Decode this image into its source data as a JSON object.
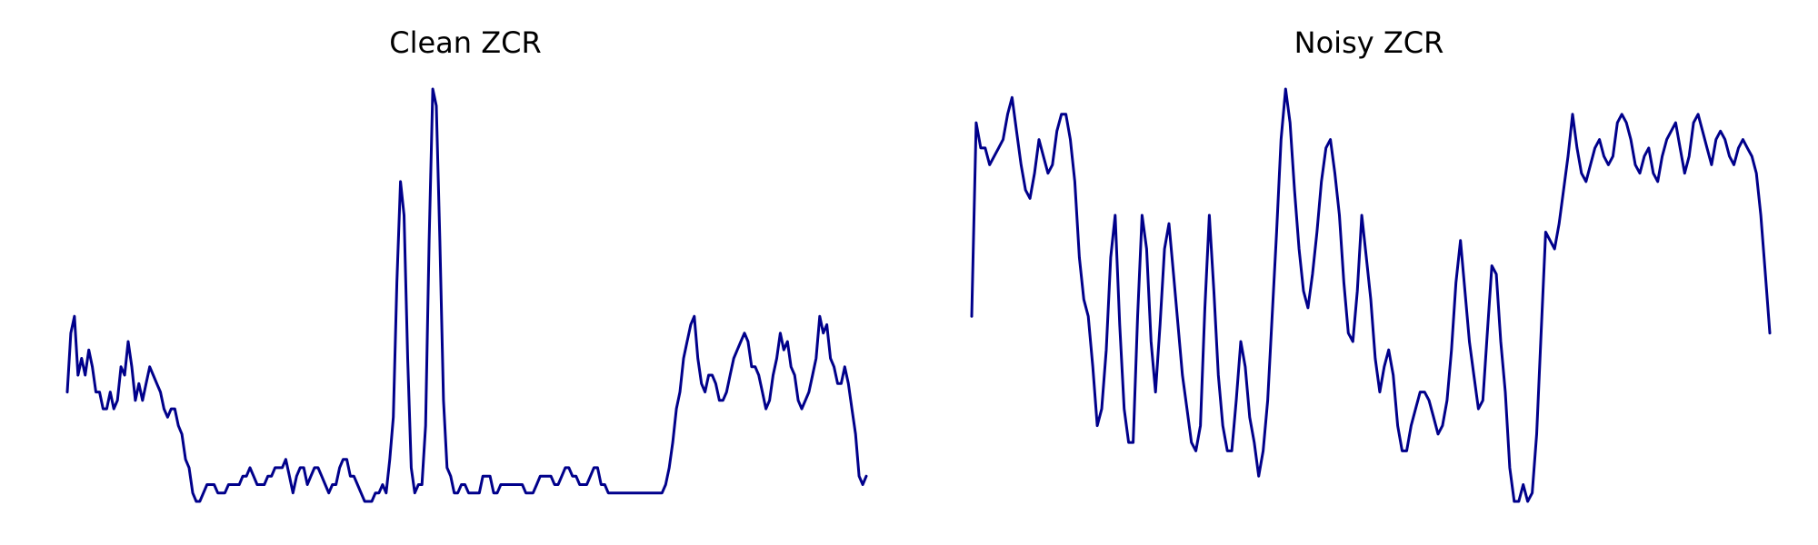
{
  "chart_data": [
    {
      "type": "line",
      "title": "Clean ZCR",
      "xlabel": "",
      "ylabel": "",
      "grid": false,
      "axes_visible": false,
      "color": "#00008B",
      "series": [
        {
          "values": [
            0.31,
            0.38,
            0.4,
            0.33,
            0.35,
            0.33,
            0.36,
            0.34,
            0.31,
            0.31,
            0.29,
            0.29,
            0.31,
            0.29,
            0.3,
            0.34,
            0.33,
            0.37,
            0.34,
            0.3,
            0.32,
            0.3,
            0.32,
            0.34,
            0.33,
            0.32,
            0.31,
            0.29,
            0.28,
            0.29,
            0.29,
            0.27,
            0.26,
            0.23,
            0.22,
            0.19,
            0.18,
            0.18,
            0.19,
            0.2,
            0.2,
            0.2,
            0.19,
            0.19,
            0.19,
            0.2,
            0.2,
            0.2,
            0.2,
            0.21,
            0.21,
            0.22,
            0.21,
            0.2,
            0.2,
            0.2,
            0.21,
            0.21,
            0.22,
            0.22,
            0.22,
            0.23,
            0.21,
            0.19,
            0.21,
            0.22,
            0.22,
            0.2,
            0.21,
            0.22,
            0.22,
            0.21,
            0.2,
            0.19,
            0.2,
            0.2,
            0.22,
            0.23,
            0.23,
            0.21,
            0.21,
            0.2,
            0.19,
            0.18,
            0.18,
            0.18,
            0.19,
            0.19,
            0.2,
            0.19,
            0.23,
            0.28,
            0.44,
            0.56,
            0.52,
            0.35,
            0.22,
            0.19,
            0.2,
            0.2,
            0.27,
            0.49,
            0.67,
            0.65,
            0.49,
            0.3,
            0.22,
            0.21,
            0.19,
            0.19,
            0.2,
            0.2,
            0.19,
            0.19,
            0.19,
            0.19,
            0.21,
            0.21,
            0.21,
            0.19,
            0.19,
            0.2,
            0.2,
            0.2,
            0.2,
            0.2,
            0.2,
            0.2,
            0.19,
            0.19,
            0.19,
            0.2,
            0.21,
            0.21,
            0.21,
            0.21,
            0.2,
            0.2,
            0.21,
            0.22,
            0.22,
            0.21,
            0.21,
            0.2,
            0.2,
            0.2,
            0.21,
            0.22,
            0.22,
            0.2,
            0.2,
            0.19,
            0.19,
            0.19,
            0.19,
            0.19,
            0.19,
            0.19,
            0.19,
            0.19,
            0.19,
            0.19,
            0.19,
            0.19,
            0.19,
            0.19,
            0.19,
            0.2,
            0.22,
            0.25,
            0.29,
            0.31,
            0.35,
            0.37,
            0.39,
            0.4,
            0.35,
            0.32,
            0.31,
            0.33,
            0.33,
            0.32,
            0.3,
            0.3,
            0.31,
            0.33,
            0.35,
            0.36,
            0.37,
            0.38,
            0.37,
            0.34,
            0.34,
            0.33,
            0.31,
            0.29,
            0.3,
            0.33,
            0.35,
            0.38,
            0.36,
            0.37,
            0.34,
            0.33,
            0.3,
            0.29,
            0.3,
            0.31,
            0.33,
            0.35,
            0.4,
            0.38,
            0.39,
            0.35,
            0.34,
            0.32,
            0.32,
            0.34,
            0.32,
            0.29,
            0.26,
            0.21,
            0.2,
            0.21
          ]
        }
      ]
    },
    {
      "type": "line",
      "title": "Noisy ZCR",
      "xlabel": "",
      "ylabel": "",
      "grid": false,
      "axes_visible": false,
      "color": "#00008B",
      "series": [
        {
          "values": [
            0.42,
            0.65,
            0.62,
            0.62,
            0.6,
            0.61,
            0.62,
            0.63,
            0.66,
            0.68,
            0.64,
            0.6,
            0.57,
            0.56,
            0.59,
            0.63,
            0.61,
            0.59,
            0.6,
            0.64,
            0.66,
            0.66,
            0.63,
            0.58,
            0.49,
            0.44,
            0.42,
            0.36,
            0.29,
            0.31,
            0.38,
            0.49,
            0.54,
            0.41,
            0.31,
            0.27,
            0.27,
            0.42,
            0.54,
            0.5,
            0.39,
            0.33,
            0.41,
            0.5,
            0.53,
            0.47,
            0.41,
            0.35,
            0.31,
            0.27,
            0.26,
            0.29,
            0.43,
            0.54,
            0.45,
            0.35,
            0.29,
            0.26,
            0.26,
            0.32,
            0.39,
            0.36,
            0.3,
            0.27,
            0.23,
            0.26,
            0.32,
            0.42,
            0.52,
            0.63,
            0.69,
            0.65,
            0.57,
            0.5,
            0.45,
            0.43,
            0.47,
            0.52,
            0.58,
            0.62,
            0.63,
            0.59,
            0.54,
            0.46,
            0.4,
            0.39,
            0.45,
            0.54,
            0.49,
            0.44,
            0.37,
            0.33,
            0.36,
            0.38,
            0.35,
            0.29,
            0.26,
            0.26,
            0.29,
            0.31,
            0.33,
            0.33,
            0.32,
            0.3,
            0.28,
            0.29,
            0.32,
            0.38,
            0.46,
            0.51,
            0.45,
            0.39,
            0.35,
            0.31,
            0.32,
            0.4,
            0.48,
            0.47,
            0.39,
            0.33,
            0.24,
            0.2,
            0.2,
            0.22,
            0.2,
            0.21,
            0.28,
            0.4,
            0.52,
            0.51,
            0.5,
            0.53,
            0.57,
            0.61,
            0.66,
            0.62,
            0.59,
            0.58,
            0.6,
            0.62,
            0.63,
            0.61,
            0.6,
            0.61,
            0.65,
            0.66,
            0.65,
            0.63,
            0.6,
            0.59,
            0.61,
            0.62,
            0.59,
            0.58,
            0.61,
            0.63,
            0.64,
            0.65,
            0.62,
            0.59,
            0.61,
            0.65,
            0.66,
            0.64,
            0.62,
            0.6,
            0.63,
            0.64,
            0.63,
            0.61,
            0.6,
            0.62,
            0.63,
            0.62,
            0.61,
            0.59,
            0.54,
            0.47,
            0.4
          ]
        }
      ]
    }
  ]
}
